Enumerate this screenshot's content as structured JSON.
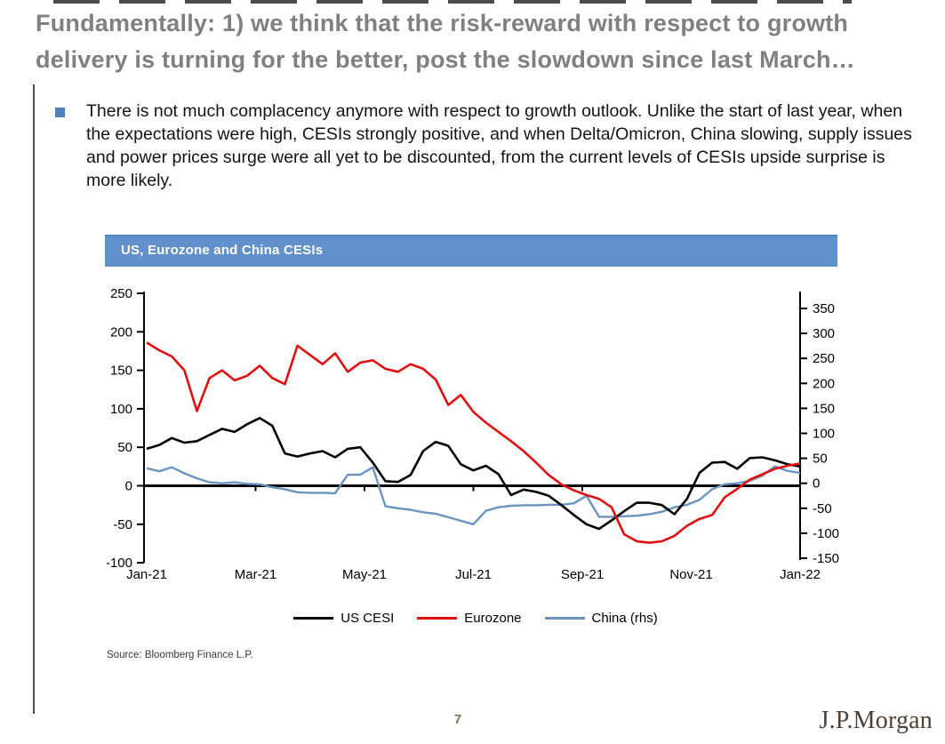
{
  "page": {
    "title_line1": "Fundamentally: 1) we think that the risk-reward with respect to growth",
    "title_line2": "delivery is turning for the better, post the slowdown since last March…",
    "bullet_text": "There is not much complacency anymore with respect to growth outlook. Unlike the start of last year, when the expectations were high, CESIs strongly positive, and when Delta/Omicron, China slowing, supply issues and power prices surge were all yet to be discounted, from the current levels of CESIs upside surprise is more likely.",
    "source": "Source: Bloomberg Finance L.P.",
    "page_number": "7",
    "logo": "J.P.Morgan"
  },
  "chart_data": {
    "type": "line",
    "title": "US, Eurozone and China CESIs",
    "header_bg": "#6190ca",
    "x_labels": [
      "Jan-21",
      "Mar-21",
      "May-21",
      "Jul-21",
      "Sep-21",
      "Nov-21",
      "Jan-22"
    ],
    "x_unit": "weekly points, Jan-2021 to Jan-2022",
    "left_axis": {
      "min": -100,
      "max": 250,
      "ticks": [
        250,
        200,
        150,
        100,
        50,
        0,
        -50,
        -100
      ]
    },
    "right_axis": {
      "min": -150,
      "max": 350,
      "ticks": [
        350,
        300,
        250,
        200,
        150,
        100,
        50,
        0,
        -50,
        -100,
        -150
      ]
    },
    "grid": false,
    "legend_position": "bottom-center",
    "series": [
      {
        "name": "US CESI",
        "axis": "left",
        "color": "#000000",
        "width": 2.6,
        "values": [
          48,
          53,
          62,
          56,
          58,
          66,
          74,
          70,
          80,
          88,
          78,
          42,
          38,
          42,
          45,
          37,
          48,
          50,
          30,
          6,
          5,
          14,
          45,
          57,
          52,
          28,
          20,
          26,
          15,
          -12,
          -5,
          -8,
          -13,
          -25,
          -38,
          -50,
          -56,
          -45,
          -33,
          -22,
          -22,
          -25,
          -37,
          -17,
          17,
          30,
          31,
          22,
          36,
          37,
          33,
          28,
          25
        ]
      },
      {
        "name": "Eurozone",
        "axis": "left",
        "color": "#e01010",
        "width": 2.6,
        "values": [
          186,
          176,
          168,
          150,
          97,
          140,
          150,
          137,
          143,
          156,
          140,
          132,
          182,
          170,
          158,
          172,
          148,
          160,
          163,
          152,
          148,
          158,
          152,
          138,
          105,
          118,
          96,
          82,
          70,
          58,
          45,
          30,
          14,
          2,
          -6,
          -12,
          -17,
          -28,
          -63,
          -72,
          -74,
          -72,
          -65,
          -52,
          -43,
          -38,
          -15,
          -4,
          8,
          15,
          22,
          26,
          29
        ]
      },
      {
        "name": "China (rhs)",
        "axis": "right",
        "color": "#6a94c1",
        "width": 2.4,
        "values": [
          30,
          24,
          32,
          20,
          10,
          2,
          0,
          2,
          -1,
          -2,
          -8,
          -12,
          -18,
          -19,
          -19,
          -20,
          17,
          17,
          32,
          -46,
          -50,
          -53,
          -58,
          -61,
          -68,
          -75,
          -82,
          -55,
          -48,
          -45,
          -44,
          -44,
          -43,
          -43,
          -40,
          -25,
          -67,
          -67,
          -66,
          -65,
          -62,
          -57,
          -48,
          -43,
          -33,
          -12,
          -2,
          0,
          5,
          15,
          34,
          25,
          21
        ]
      }
    ]
  }
}
